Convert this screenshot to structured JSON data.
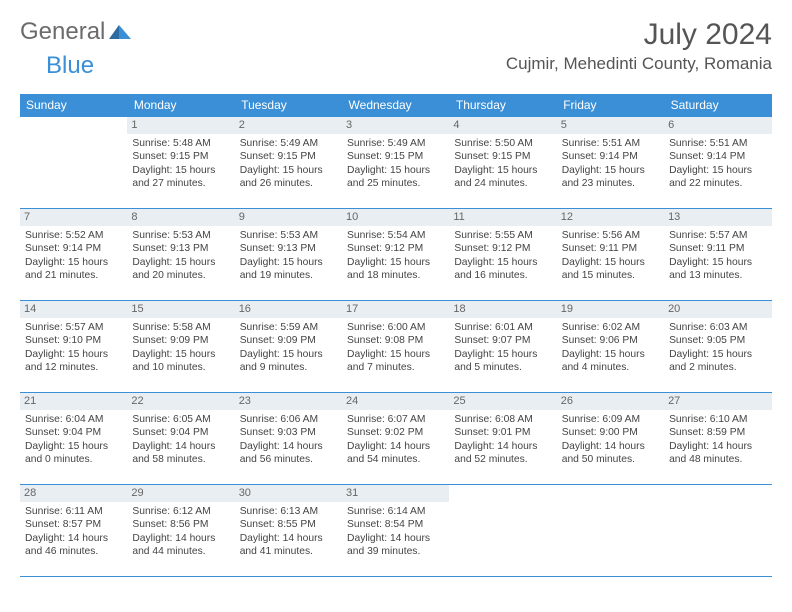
{
  "branding": {
    "word1": "General",
    "word2": "Blue",
    "word1_color": "#6b6b6b",
    "word2_color": "#3a8fd6"
  },
  "header": {
    "month_title": "July 2024",
    "location": "Cujmir, Mehedinti County, Romania"
  },
  "style": {
    "accent": "#3a8fd6",
    "daynum_bg": "#e9eef2",
    "page_bg": "#ffffff",
    "text_color": "#444"
  },
  "day_headers": [
    "Sunday",
    "Monday",
    "Tuesday",
    "Wednesday",
    "Thursday",
    "Friday",
    "Saturday"
  ],
  "weeks": [
    [
      {
        "n": "",
        "sr": "",
        "ss": "",
        "dl": ""
      },
      {
        "n": "1",
        "sr": "Sunrise: 5:48 AM",
        "ss": "Sunset: 9:15 PM",
        "dl": "Daylight: 15 hours and 27 minutes."
      },
      {
        "n": "2",
        "sr": "Sunrise: 5:49 AM",
        "ss": "Sunset: 9:15 PM",
        "dl": "Daylight: 15 hours and 26 minutes."
      },
      {
        "n": "3",
        "sr": "Sunrise: 5:49 AM",
        "ss": "Sunset: 9:15 PM",
        "dl": "Daylight: 15 hours and 25 minutes."
      },
      {
        "n": "4",
        "sr": "Sunrise: 5:50 AM",
        "ss": "Sunset: 9:15 PM",
        "dl": "Daylight: 15 hours and 24 minutes."
      },
      {
        "n": "5",
        "sr": "Sunrise: 5:51 AM",
        "ss": "Sunset: 9:14 PM",
        "dl": "Daylight: 15 hours and 23 minutes."
      },
      {
        "n": "6",
        "sr": "Sunrise: 5:51 AM",
        "ss": "Sunset: 9:14 PM",
        "dl": "Daylight: 15 hours and 22 minutes."
      }
    ],
    [
      {
        "n": "7",
        "sr": "Sunrise: 5:52 AM",
        "ss": "Sunset: 9:14 PM",
        "dl": "Daylight: 15 hours and 21 minutes."
      },
      {
        "n": "8",
        "sr": "Sunrise: 5:53 AM",
        "ss": "Sunset: 9:13 PM",
        "dl": "Daylight: 15 hours and 20 minutes."
      },
      {
        "n": "9",
        "sr": "Sunrise: 5:53 AM",
        "ss": "Sunset: 9:13 PM",
        "dl": "Daylight: 15 hours and 19 minutes."
      },
      {
        "n": "10",
        "sr": "Sunrise: 5:54 AM",
        "ss": "Sunset: 9:12 PM",
        "dl": "Daylight: 15 hours and 18 minutes."
      },
      {
        "n": "11",
        "sr": "Sunrise: 5:55 AM",
        "ss": "Sunset: 9:12 PM",
        "dl": "Daylight: 15 hours and 16 minutes."
      },
      {
        "n": "12",
        "sr": "Sunrise: 5:56 AM",
        "ss": "Sunset: 9:11 PM",
        "dl": "Daylight: 15 hours and 15 minutes."
      },
      {
        "n": "13",
        "sr": "Sunrise: 5:57 AM",
        "ss": "Sunset: 9:11 PM",
        "dl": "Daylight: 15 hours and 13 minutes."
      }
    ],
    [
      {
        "n": "14",
        "sr": "Sunrise: 5:57 AM",
        "ss": "Sunset: 9:10 PM",
        "dl": "Daylight: 15 hours and 12 minutes."
      },
      {
        "n": "15",
        "sr": "Sunrise: 5:58 AM",
        "ss": "Sunset: 9:09 PM",
        "dl": "Daylight: 15 hours and 10 minutes."
      },
      {
        "n": "16",
        "sr": "Sunrise: 5:59 AM",
        "ss": "Sunset: 9:09 PM",
        "dl": "Daylight: 15 hours and 9 minutes."
      },
      {
        "n": "17",
        "sr": "Sunrise: 6:00 AM",
        "ss": "Sunset: 9:08 PM",
        "dl": "Daylight: 15 hours and 7 minutes."
      },
      {
        "n": "18",
        "sr": "Sunrise: 6:01 AM",
        "ss": "Sunset: 9:07 PM",
        "dl": "Daylight: 15 hours and 5 minutes."
      },
      {
        "n": "19",
        "sr": "Sunrise: 6:02 AM",
        "ss": "Sunset: 9:06 PM",
        "dl": "Daylight: 15 hours and 4 minutes."
      },
      {
        "n": "20",
        "sr": "Sunrise: 6:03 AM",
        "ss": "Sunset: 9:05 PM",
        "dl": "Daylight: 15 hours and 2 minutes."
      }
    ],
    [
      {
        "n": "21",
        "sr": "Sunrise: 6:04 AM",
        "ss": "Sunset: 9:04 PM",
        "dl": "Daylight: 15 hours and 0 minutes."
      },
      {
        "n": "22",
        "sr": "Sunrise: 6:05 AM",
        "ss": "Sunset: 9:04 PM",
        "dl": "Daylight: 14 hours and 58 minutes."
      },
      {
        "n": "23",
        "sr": "Sunrise: 6:06 AM",
        "ss": "Sunset: 9:03 PM",
        "dl": "Daylight: 14 hours and 56 minutes."
      },
      {
        "n": "24",
        "sr": "Sunrise: 6:07 AM",
        "ss": "Sunset: 9:02 PM",
        "dl": "Daylight: 14 hours and 54 minutes."
      },
      {
        "n": "25",
        "sr": "Sunrise: 6:08 AM",
        "ss": "Sunset: 9:01 PM",
        "dl": "Daylight: 14 hours and 52 minutes."
      },
      {
        "n": "26",
        "sr": "Sunrise: 6:09 AM",
        "ss": "Sunset: 9:00 PM",
        "dl": "Daylight: 14 hours and 50 minutes."
      },
      {
        "n": "27",
        "sr": "Sunrise: 6:10 AM",
        "ss": "Sunset: 8:59 PM",
        "dl": "Daylight: 14 hours and 48 minutes."
      }
    ],
    [
      {
        "n": "28",
        "sr": "Sunrise: 6:11 AM",
        "ss": "Sunset: 8:57 PM",
        "dl": "Daylight: 14 hours and 46 minutes."
      },
      {
        "n": "29",
        "sr": "Sunrise: 6:12 AM",
        "ss": "Sunset: 8:56 PM",
        "dl": "Daylight: 14 hours and 44 minutes."
      },
      {
        "n": "30",
        "sr": "Sunrise: 6:13 AM",
        "ss": "Sunset: 8:55 PM",
        "dl": "Daylight: 14 hours and 41 minutes."
      },
      {
        "n": "31",
        "sr": "Sunrise: 6:14 AM",
        "ss": "Sunset: 8:54 PM",
        "dl": "Daylight: 14 hours and 39 minutes."
      },
      {
        "n": "",
        "sr": "",
        "ss": "",
        "dl": ""
      },
      {
        "n": "",
        "sr": "",
        "ss": "",
        "dl": ""
      },
      {
        "n": "",
        "sr": "",
        "ss": "",
        "dl": ""
      }
    ]
  ]
}
